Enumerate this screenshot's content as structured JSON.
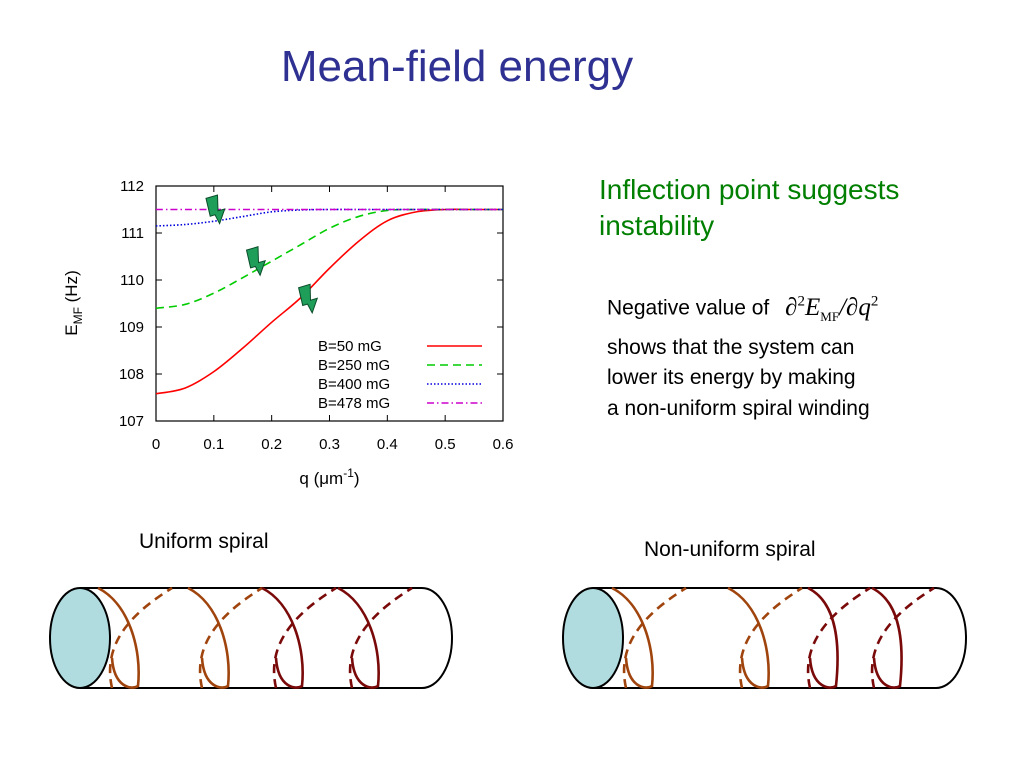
{
  "title": "Mean-field energy",
  "note": {
    "line1": "Inflection point suggests",
    "line2": "instability"
  },
  "description": {
    "prefix": "Negative value of",
    "formula_partial": "∂",
    "formula_order": "2",
    "formula_E": "E",
    "formula_sub": "MF",
    "formula_slash": "/∂",
    "formula_q": "q",
    "line2": "shows that  the system can",
    "line3": "lower its energy by making",
    "line4": "a non-uniform spiral winding"
  },
  "captions": {
    "uniform": "Uniform spiral",
    "nonuniform": "Non-uniform spiral"
  },
  "colors": {
    "title": "#2e3192",
    "note": "#007f00",
    "cylinder_cap": "#b0dce0",
    "winding_light": "#a0440e",
    "winding_dark": "#7a0a0a",
    "arrow_marker": "#1f9e5a"
  },
  "icons": [
    "lightning-arrow-icon"
  ],
  "chart_data": {
    "type": "line",
    "xlabel_main": "q (",
    "xlabel_unit": "μm",
    "xlabel_sup": "-1",
    "xlabel_close": ")",
    "ylabel_main": "E",
    "ylabel_sub": "MF",
    "ylabel_unit": " (Hz)",
    "xlim": [
      0,
      0.6
    ],
    "ylim": [
      107,
      112
    ],
    "xticks": [
      "0",
      "0.1",
      "0.2",
      "0.3",
      "0.4",
      "0.5",
      "0.6"
    ],
    "yticks": [
      "107",
      "108",
      "109",
      "110",
      "111",
      "112"
    ],
    "legend_position": "bottom-right",
    "grid": false,
    "series": [
      {
        "name": "B=50 mG",
        "color": "#ff0000",
        "dash": "solid",
        "x": [
          0,
          0.05,
          0.1,
          0.15,
          0.2,
          0.25,
          0.3,
          0.35,
          0.4,
          0.45,
          0.5,
          0.55,
          0.6
        ],
        "y": [
          107.58,
          107.7,
          108.05,
          108.55,
          109.1,
          109.62,
          110.25,
          110.82,
          111.26,
          111.45,
          111.5,
          111.5,
          111.5
        ]
      },
      {
        "name": "B=250 mG",
        "color": "#00cc00",
        "dash": "dashed",
        "x": [
          0,
          0.05,
          0.1,
          0.15,
          0.2,
          0.25,
          0.3,
          0.35,
          0.4,
          0.45,
          0.5,
          0.55,
          0.6
        ],
        "y": [
          109.4,
          109.48,
          109.72,
          110.05,
          110.4,
          110.75,
          111.1,
          111.35,
          111.48,
          111.5,
          111.5,
          111.5,
          111.5
        ]
      },
      {
        "name": "B=400 mG",
        "color": "#0000dd",
        "dash": "dotted",
        "x": [
          0,
          0.05,
          0.1,
          0.15,
          0.2,
          0.25,
          0.3,
          0.35,
          0.4,
          0.5,
          0.6
        ],
        "y": [
          111.15,
          111.18,
          111.25,
          111.35,
          111.45,
          111.49,
          111.5,
          111.5,
          111.5,
          111.5,
          111.5
        ]
      },
      {
        "name": "B=478 mG",
        "color": "#cc00cc",
        "dash": "dashdot",
        "x": [
          0,
          0.1,
          0.2,
          0.3,
          0.4,
          0.5,
          0.6
        ],
        "y": [
          111.5,
          111.5,
          111.5,
          111.5,
          111.5,
          111.5,
          111.5
        ]
      }
    ],
    "markers": [
      {
        "x": 0.11,
        "y": 111.2
      },
      {
        "x": 0.18,
        "y": 110.1
      },
      {
        "x": 0.27,
        "y": 109.3
      }
    ]
  }
}
